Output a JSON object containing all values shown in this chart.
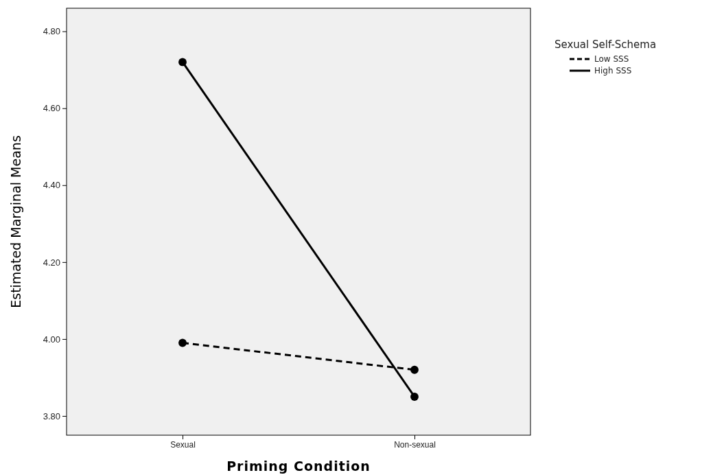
{
  "chart_data": {
    "type": "line",
    "xlabel": "Priming Condition",
    "ylabel": "Estimated Marginal Means",
    "legend_title": "Sexual Self-Schema",
    "categories": [
      "Sexual",
      "Non-sexual"
    ],
    "series": [
      {
        "name": "Low SSS",
        "color": "#000000",
        "line_style": "dashed",
        "values": [
          3.99,
          3.92
        ]
      },
      {
        "name": "High SSS",
        "color": "#000000",
        "line_style": "solid",
        "values": [
          4.72,
          3.85
        ]
      }
    ],
    "ylim": [
      3.75,
      4.86
    ],
    "yticks": [
      {
        "value": 3.8,
        "label": "3.80"
      },
      {
        "value": 4.0,
        "label": "4.00"
      },
      {
        "value": 4.2,
        "label": "4.20"
      },
      {
        "value": 4.4,
        "label": "4.40"
      },
      {
        "value": 4.6,
        "label": "4.60"
      },
      {
        "value": 4.8,
        "label": "4.80"
      }
    ],
    "marker": "circle",
    "legend": "top right",
    "grid": false
  }
}
